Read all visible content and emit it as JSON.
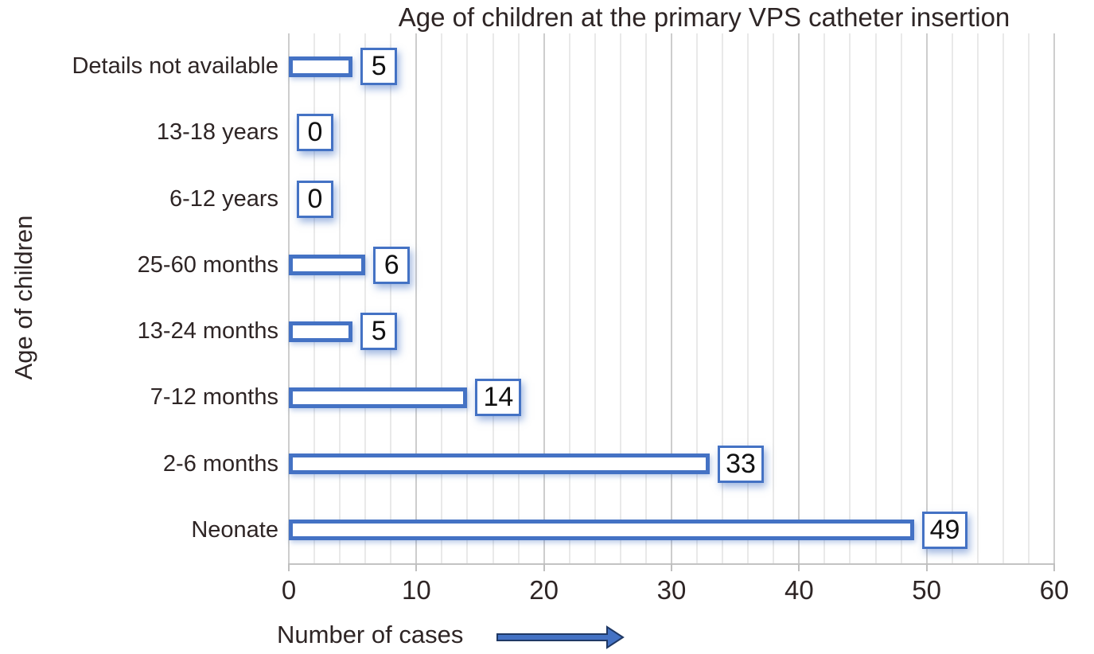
{
  "chart_data": {
    "type": "bar",
    "orientation": "horizontal",
    "title": "Age of children at the primary VPS catheter insertion",
    "xlabel": "Number of cases",
    "ylabel": "Age of children",
    "categories": [
      "Details not available",
      "13-18 years",
      "6-12 years",
      "25-60 months",
      "13-24 months",
      "7-12 months",
      "2-6 months",
      "Neonate"
    ],
    "values": [
      5,
      0,
      0,
      6,
      5,
      14,
      33,
      49
    ],
    "data_labels": [
      "5",
      "0",
      "0",
      "6",
      "5",
      "14",
      "33",
      "49"
    ],
    "xlim": [
      0,
      60
    ],
    "x_ticks": [
      0,
      10,
      20,
      30,
      40,
      50,
      60
    ],
    "minor_gridline_step": 2,
    "major_gridline_step": 10,
    "grid": true,
    "legend": false,
    "bar_style": "white fill with blue outline",
    "data_label_style": "boxed with blue outline and soft blue shadow"
  },
  "icons": {
    "x_axis_arrow": "right-arrow"
  },
  "colors": {
    "accent_blue": "#4472c4",
    "arrow_outline": "#1f3864",
    "text": "#2e2525",
    "minor_gridline": "#e9e9e9",
    "major_gridline": "#cdcdcd",
    "axis_line": "#c3c3c3",
    "label_shadow": "rgba(68,114,196,0.5)"
  }
}
